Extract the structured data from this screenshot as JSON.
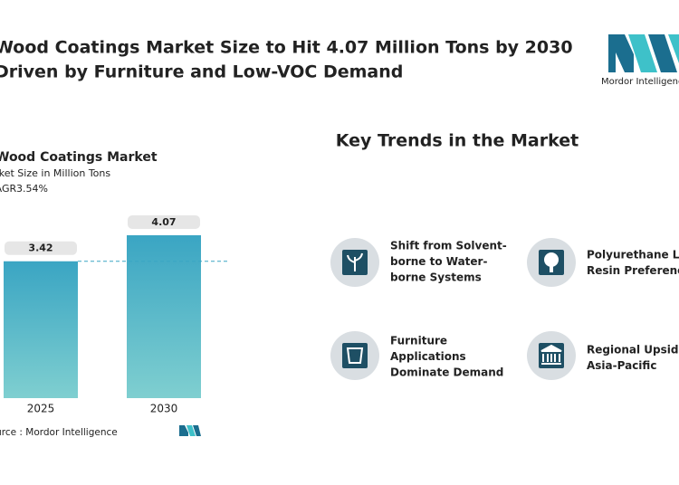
{
  "header": {
    "title_lines": [
      "Wood Coatings Market Size to Hit 4.07 Million Tons by 2030",
      "Driven by Furniture and Low-VOC Demand"
    ],
    "logo_text": "Mordor Intelligence"
  },
  "chart_data": {
    "type": "bar",
    "title": "Wood Coatings Market",
    "subtitle": "Market Size in Million Tons",
    "cagr_label": "CAGR",
    "cagr_value": "3.54%",
    "categories": [
      "2025",
      "2030"
    ],
    "values": [
      3.42,
      4.07
    ],
    "ylim": [
      0,
      4.07
    ],
    "colors": [
      "#3aa5c3",
      "#7fcfd0"
    ],
    "source": "Source : Mordor Intelligence"
  },
  "trends": {
    "title": "Key Trends in the Market",
    "items": [
      {
        "lines": [
          "Shift from Solvent-",
          "borne to Water-",
          "borne Systems"
        ]
      },
      {
        "lines": [
          "Polyurethane Le",
          "Resin Preferenc"
        ]
      },
      {
        "lines": [
          "Furniture",
          "Applications",
          "Dominate Demand"
        ]
      },
      {
        "lines": [
          "Regional Upside",
          "Asia-Pacific"
        ]
      }
    ]
  }
}
